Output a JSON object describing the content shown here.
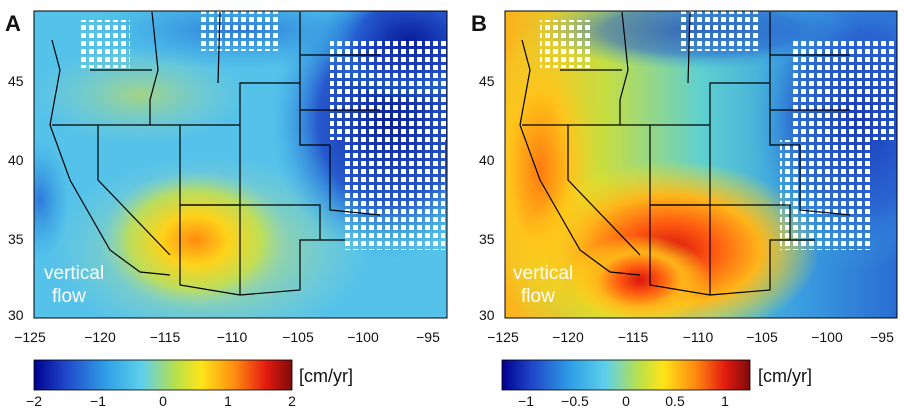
{
  "panels": [
    {
      "letter": "A",
      "label_line1": "vertical",
      "label_line2": "flow",
      "unit": "[cm/yr]",
      "lat_ticks": [
        "45",
        "40",
        "35",
        "30"
      ],
      "lon_ticks": [
        "−125",
        "−120",
        "−115",
        "−110",
        "−105",
        "−100",
        "−95"
      ],
      "colorbar_ticks": [
        "−2",
        "−1",
        "0",
        "1",
        "2"
      ],
      "colorbar_range": [
        -2,
        2
      ],
      "field": [
        {
          "lon": -112,
          "lat": 34.5,
          "value": 1.2
        },
        {
          "lon": -116,
          "lat": 34,
          "value": 0.7
        },
        {
          "lon": -114,
          "lat": 44.5,
          "value": 0.3
        },
        {
          "lon": -100,
          "lat": 44,
          "value": -1.6
        },
        {
          "lon": -96,
          "lat": 36,
          "value": -1.2
        }
      ]
    },
    {
      "letter": "B",
      "label_line1": "vertical",
      "label_line2": "flow",
      "unit": "[cm/yr]",
      "lat_ticks": [
        "45",
        "40",
        "35",
        "30"
      ],
      "lon_ticks": [
        "−125",
        "−120",
        "−115",
        "−110",
        "−105",
        "−100",
        "−95"
      ],
      "colorbar_ticks": [
        "−1",
        "−0.5",
        "0",
        "0.5",
        "1"
      ],
      "colorbar_range": [
        -1.25,
        1.25
      ],
      "field": [
        {
          "lon": -112,
          "lat": 33.5,
          "value": 1.1
        },
        {
          "lon": -124,
          "lat": 36,
          "value": 0.6
        },
        {
          "lon": -108,
          "lat": 35.5,
          "value": 0.8
        },
        {
          "lon": -100,
          "lat": 44,
          "value": -0.9
        },
        {
          "lon": -96,
          "lat": 36,
          "value": -0.7
        }
      ]
    }
  ],
  "colors": {
    "colormap": [
      "#00008f",
      "#1f46c8",
      "#2fa0e6",
      "#5fd0ea",
      "#b8e04a",
      "#ffe419",
      "#ff8a10",
      "#e41a10",
      "#7d0a0a"
    ],
    "mask": "#ffffff",
    "border": "#000000"
  }
}
